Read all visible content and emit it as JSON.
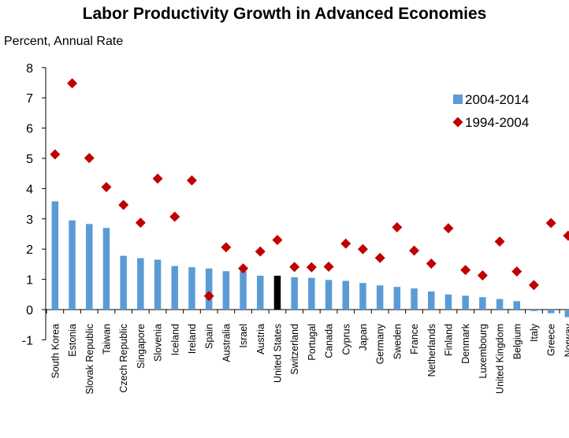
{
  "chart_data": {
    "type": "bar",
    "title": "Labor Productivity Growth in Advanced Economies",
    "ylabel": "Percent, Annual Rate",
    "xlabel": "",
    "ylim": [
      -1,
      8
    ],
    "yticks": [
      "8",
      "7",
      "6",
      "5",
      "4",
      "3",
      "2",
      "1",
      "0",
      "-1"
    ],
    "grid": false,
    "legend_position": "top-right",
    "categories": [
      "South Korea",
      "Estonia",
      "Slovak Republic",
      "Taiwan",
      "Czech Republic",
      "Singapore",
      "Slovenia",
      "Iceland",
      "Ireland",
      "Spain",
      "Australia",
      "Israel",
      "Austria",
      "United States",
      "Switzerland",
      "Portugal",
      "Canada",
      "Cyprus",
      "Japan",
      "Germany",
      "Sweden",
      "France",
      "Netherlands",
      "Finland",
      "Denmark",
      "Luxembourg",
      "United Kingdom",
      "Belgium",
      "Italy",
      "Greece",
      "Norway"
    ],
    "highlight_category": "United States",
    "series": [
      {
        "name": "2004-2014",
        "kind": "bar",
        "color": "#5b9bd5",
        "highlight_color": "#000000",
        "values": [
          3.58,
          2.95,
          2.83,
          2.7,
          1.78,
          1.7,
          1.65,
          1.44,
          1.4,
          1.36,
          1.27,
          1.27,
          1.12,
          1.12,
          1.07,
          1.05,
          0.98,
          0.95,
          0.88,
          0.8,
          0.75,
          0.7,
          0.6,
          0.5,
          0.46,
          0.41,
          0.35,
          0.28,
          -0.05,
          -0.12,
          -0.25
        ]
      },
      {
        "name": "1994-2004",
        "kind": "marker",
        "color": "#c00000",
        "values": [
          5.13,
          7.48,
          5.01,
          4.05,
          3.46,
          2.87,
          4.33,
          3.07,
          4.27,
          0.45,
          2.06,
          1.36,
          1.92,
          2.3,
          1.41,
          1.4,
          1.42,
          2.18,
          2.0,
          1.71,
          2.72,
          1.95,
          1.52,
          2.69,
          1.31,
          1.13,
          2.25,
          1.26,
          0.81,
          2.86,
          2.44
        ]
      }
    ]
  }
}
